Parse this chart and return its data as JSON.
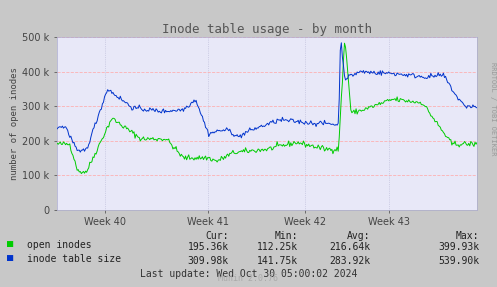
{
  "title": "Inode table usage - by month",
  "ylabel": "number of open inodes",
  "background_color": "#c8c8c8",
  "plot_bg_color": "#e8e8f8",
  "grid_color_h": "#ffaaaa",
  "grid_color_v": "#aaaacc",
  "ylim": [
    0,
    500000
  ],
  "yticks": [
    0,
    100000,
    200000,
    300000,
    400000,
    500000
  ],
  "xtick_labels": [
    "Week 40",
    "Week 41",
    "Week 42",
    "Week 43"
  ],
  "title_color": "#555555",
  "green_color": "#00cc00",
  "blue_color": "#0033cc",
  "legend_items": [
    "open inodes",
    "inode table size"
  ],
  "cur_values": [
    "195.36k",
    "309.98k"
  ],
  "min_values": [
    "112.25k",
    "141.75k"
  ],
  "avg_values": [
    "216.64k",
    "283.92k"
  ],
  "max_values": [
    "399.93k",
    "539.90k"
  ],
  "last_update": "Last update: Wed Oct 30 05:00:02 2024",
  "munin_version": "Munin 2.0.76",
  "watermark": "RRDTOOL / TOBI OETIKER"
}
